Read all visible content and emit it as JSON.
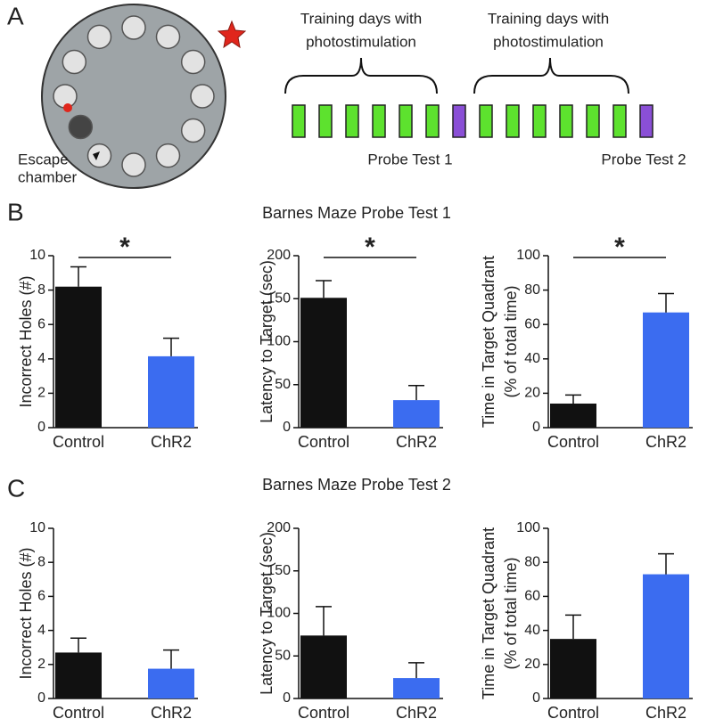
{
  "panel_labels": [
    "A",
    "B",
    "C"
  ],
  "diagram": {
    "escape_label": [
      "Escape",
      "chamber"
    ],
    "training_label_1": [
      "Training days with",
      "photostimulation"
    ],
    "training_label_2": [
      "Training days with",
      "photostimulation"
    ],
    "probe_1": "Probe Test 1",
    "probe_2": "Probe Test 2"
  },
  "section_titles": [
    "Barnes Maze Probe Test 1",
    "Barnes Maze Probe Test 2"
  ],
  "chart_data": [
    {
      "type": "bar",
      "ylabel": [
        "Incorrect Holes (#)"
      ],
      "categories": [
        "Control",
        "ChR2"
      ],
      "values": [
        8.2,
        4.15
      ],
      "errors": [
        1.15,
        1.05
      ],
      "colors": [
        "#111111",
        "#3b6cf0"
      ],
      "ylim": [
        0,
        10
      ],
      "yticks": [
        0,
        2,
        4,
        6,
        8,
        10
      ],
      "annotation": "*"
    },
    {
      "type": "bar",
      "ylabel": [
        "Latency to Target (sec)"
      ],
      "categories": [
        "Control",
        "ChR2"
      ],
      "values": [
        151,
        32
      ],
      "errors": [
        20,
        17
      ],
      "colors": [
        "#111111",
        "#3b6cf0"
      ],
      "ylim": [
        0,
        200
      ],
      "yticks": [
        0,
        50,
        100,
        150,
        200
      ],
      "annotation": "*"
    },
    {
      "type": "bar",
      "ylabel": [
        "Time in Target Quadrant",
        "(% of total time)"
      ],
      "categories": [
        "Control",
        "ChR2"
      ],
      "values": [
        14,
        67
      ],
      "errors": [
        5,
        11
      ],
      "colors": [
        "#111111",
        "#3b6cf0"
      ],
      "ylim": [
        0,
        100
      ],
      "yticks": [
        0,
        20,
        40,
        60,
        80,
        100
      ],
      "annotation": "*"
    },
    {
      "type": "bar",
      "ylabel": [
        "Incorrect Holes (#)"
      ],
      "categories": [
        "Control",
        "ChR2"
      ],
      "values": [
        2.7,
        1.75
      ],
      "errors": [
        0.85,
        1.1
      ],
      "colors": [
        "#111111",
        "#3b6cf0"
      ],
      "ylim": [
        0,
        10
      ],
      "yticks": [
        0,
        2,
        4,
        6,
        8,
        10
      ]
    },
    {
      "type": "bar",
      "ylabel": [
        "Latency to Target (sec)"
      ],
      "categories": [
        "Control",
        "ChR2"
      ],
      "values": [
        74,
        24
      ],
      "errors": [
        34,
        18
      ],
      "colors": [
        "#111111",
        "#3b6cf0"
      ],
      "ylim": [
        0,
        200
      ],
      "yticks": [
        0,
        50,
        100,
        150,
        200
      ]
    },
    {
      "type": "bar",
      "ylabel": [
        "Time in Target Quadrant",
        "(% of total time)"
      ],
      "categories": [
        "Control",
        "ChR2"
      ],
      "values": [
        35,
        73
      ],
      "errors": [
        14,
        12
      ],
      "colors": [
        "#111111",
        "#3b6cf0"
      ],
      "ylim": [
        0,
        100
      ],
      "yticks": [
        0,
        20,
        40,
        60,
        80,
        100
      ]
    }
  ]
}
